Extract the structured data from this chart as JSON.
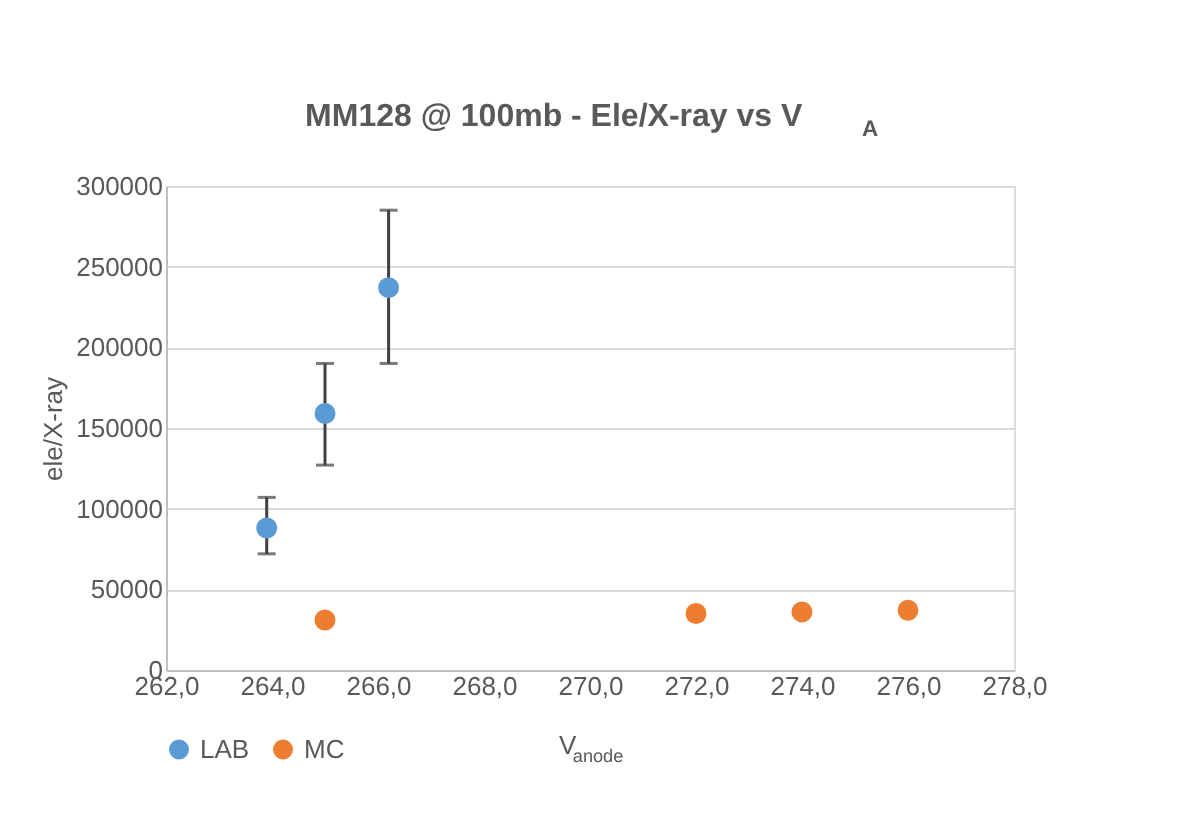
{
  "chart_data": {
    "type": "scatter",
    "title": "MM128 @ 100mb - Ele/X-ray vs V$_{A}$",
    "xlabel": "V$_{anode}$",
    "ylabel": "ele/X-ray",
    "series": [
      {
        "name": "LAB",
        "color": "#5b9bd5",
        "x": [
          263.9,
          265.0,
          266.2
        ],
        "values": [
          88000,
          159000,
          237000
        ],
        "errors": [
          [
            72000,
            107000
          ],
          [
            127000,
            190000
          ],
          [
            190000,
            285000
          ]
        ]
      },
      {
        "name": "MC",
        "color": "#ed7d31",
        "x": [
          265.0,
          272.0,
          274.0,
          276.0
        ],
        "values": [
          31000,
          35000,
          36000,
          37000
        ]
      }
    ],
    "xlim": [
      262,
      278
    ],
    "xticks": [
      {
        "value": 262,
        "label": "262,0"
      },
      {
        "value": 264,
        "label": "264,0"
      },
      {
        "value": 266,
        "label": "266,0"
      },
      {
        "value": 268,
        "label": "268,0"
      },
      {
        "value": 270,
        "label": "270,0"
      },
      {
        "value": 272,
        "label": "272,0"
      },
      {
        "value": 274,
        "label": "274,0"
      },
      {
        "value": 276,
        "label": "276,0"
      },
      {
        "value": 278,
        "label": "278,0"
      }
    ],
    "ylim": [
      0,
      300000
    ],
    "yticks": [
      0,
      50000,
      100000,
      150000,
      200000,
      250000,
      300000
    ],
    "grid": "y",
    "legend": "bottom left",
    "marker": "circle"
  }
}
